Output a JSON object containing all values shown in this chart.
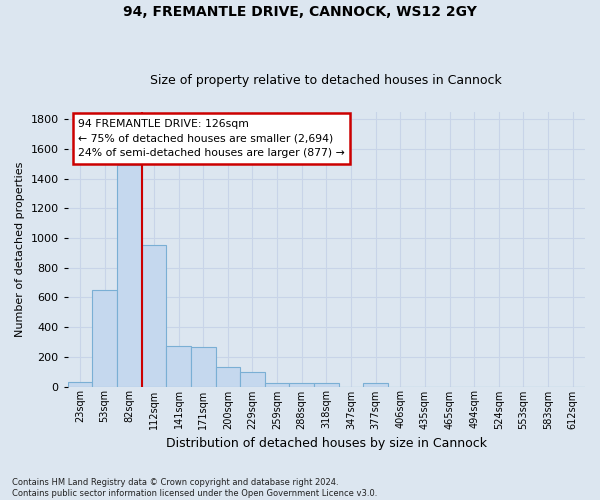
{
  "title_line1": "94, FREMANTLE DRIVE, CANNOCK, WS12 2GY",
  "title_line2": "Size of property relative to detached houses in Cannock",
  "xlabel": "Distribution of detached houses by size in Cannock",
  "ylabel": "Number of detached properties",
  "footnote": "Contains HM Land Registry data © Crown copyright and database right 2024.\nContains public sector information licensed under the Open Government Licence v3.0.",
  "bin_labels": [
    "23sqm",
    "53sqm",
    "82sqm",
    "112sqm",
    "141sqm",
    "171sqm",
    "200sqm",
    "229sqm",
    "259sqm",
    "288sqm",
    "318sqm",
    "347sqm",
    "377sqm",
    "406sqm",
    "435sqm",
    "465sqm",
    "494sqm",
    "524sqm",
    "553sqm",
    "583sqm",
    "612sqm"
  ],
  "bar_heights": [
    30,
    650,
    1490,
    950,
    270,
    265,
    130,
    100,
    25,
    25,
    25,
    0,
    25,
    0,
    0,
    0,
    0,
    0,
    0,
    0,
    0
  ],
  "bar_color": "#c5d8ee",
  "bar_edge_color": "#7aafd4",
  "vline_color": "#cc0000",
  "vline_x": 2.5,
  "ylim": [
    0,
    1850
  ],
  "yticks": [
    0,
    200,
    400,
    600,
    800,
    1000,
    1200,
    1400,
    1600,
    1800
  ],
  "annotation_box_text": "94 FREMANTLE DRIVE: 126sqm\n← 75% of detached houses are smaller (2,694)\n24% of semi-detached houses are larger (877) →",
  "grid_color": "#c8d4e8",
  "background_color": "#dce6f0",
  "fig_background": "#dce6f0"
}
